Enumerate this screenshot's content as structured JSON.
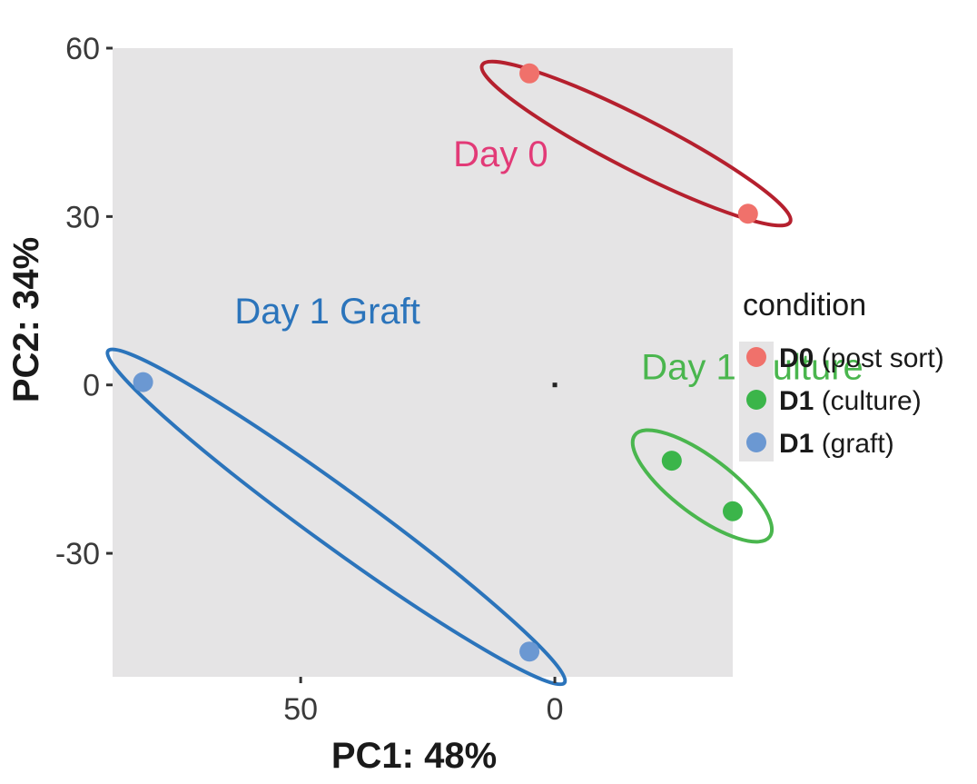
{
  "chart_data": {
    "type": "scatter",
    "xlabel": "PC1: 48%",
    "ylabel": "PC2: 34%",
    "x_reversed": true,
    "xlim": [
      87,
      -35
    ],
    "ylim": [
      -52,
      60
    ],
    "x_ticks": [
      {
        "value": 50,
        "label": "50"
      },
      {
        "value": 0,
        "label": "0"
      }
    ],
    "y_ticks": [
      {
        "value": 60,
        "label": "60"
      },
      {
        "value": 30,
        "label": "30"
      },
      {
        "value": 0,
        "label": "0"
      },
      {
        "value": -30,
        "label": "-30"
      }
    ],
    "grid": false,
    "background": "#e5e4e5",
    "legend": {
      "title": "condition",
      "position": "right",
      "entries": [
        {
          "key": "D0",
          "bold": "D0",
          "rest": " (post sort)",
          "color": "#f0716b"
        },
        {
          "key": "D1c",
          "bold": "D1",
          "rest": " (culture)",
          "color": "#3bb54a"
        },
        {
          "key": "D1g",
          "bold": "D1",
          "rest": " (graft)",
          "color": "#6b98d2"
        }
      ]
    },
    "series": [
      {
        "key": "D0",
        "color": "#f0716b",
        "points": [
          [
            5,
            55.5
          ],
          [
            -38,
            30.5
          ]
        ]
      },
      {
        "key": "D1c",
        "color": "#3bb54a",
        "points": [
          [
            -23,
            -13.5
          ],
          [
            -35,
            -22.5
          ]
        ]
      },
      {
        "key": "D1g",
        "color": "#6b98d2",
        "points": [
          [
            81,
            0.5
          ],
          [
            5,
            -47.5
          ]
        ]
      }
    ],
    "ellipses": [
      {
        "group": "D0",
        "color": "#b5202e",
        "cx": -16,
        "cy": 43,
        "rx": 34,
        "ry": 5.2,
        "angle_deg": 27
      },
      {
        "group": "D1c",
        "color": "#4ab64e",
        "cx": -29,
        "cy": -18,
        "rx": 16.6,
        "ry": 5.7,
        "angle_deg": 37
      },
      {
        "group": "D1g",
        "color": "#2b74bb",
        "cx": 43,
        "cy": -23.5,
        "rx": 55.5,
        "ry": 5.6,
        "angle_deg": 36
      }
    ],
    "annotations": [
      {
        "text": "Day 0",
        "x": 20,
        "y": 39,
        "color": "#e23a77"
      },
      {
        "text": "Day 1 Graft",
        "x": 63,
        "y": 11,
        "color": "#2b74bb"
      },
      {
        "text": "Day 1 Culture",
        "x": -17,
        "y": 1,
        "color": "#4ab64e"
      }
    ]
  }
}
